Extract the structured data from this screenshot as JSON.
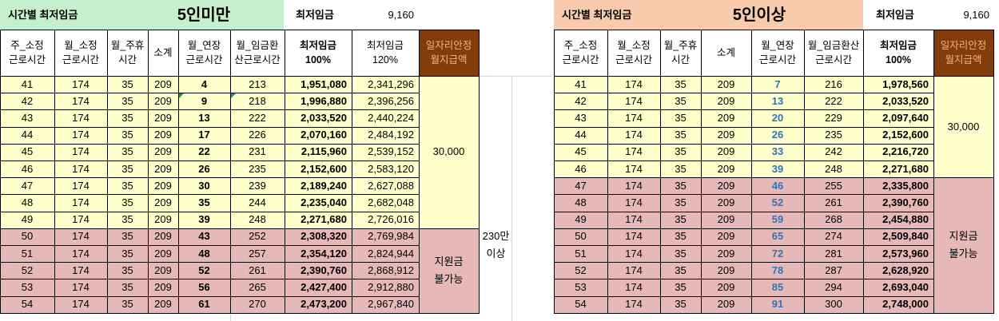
{
  "left": {
    "title": "시간별 최저임금",
    "big_title": "5인미만",
    "min_wage_label": "최저임금",
    "min_wage_value": "9,160",
    "headers": [
      "주_소정\n근로시간",
      "월_소정\n근로시간",
      "월_주휴\n시간",
      "소계",
      "월_연장\n근로시간",
      "월_임금환\n산근로시간",
      "최저임금\n100%",
      "최저임금\n120%",
      "일자리안정\n월지급액"
    ],
    "rows": [
      [
        "41",
        "174",
        "35",
        "209",
        "4",
        "213",
        "1,951,080",
        "2,341,296"
      ],
      [
        "42",
        "174",
        "35",
        "209",
        "9",
        "218",
        "1,996,880",
        "2,396,256"
      ],
      [
        "43",
        "174",
        "35",
        "209",
        "13",
        "222",
        "2,033,520",
        "2,440,224"
      ],
      [
        "44",
        "174",
        "35",
        "209",
        "17",
        "226",
        "2,070,160",
        "2,484,192"
      ],
      [
        "45",
        "174",
        "35",
        "209",
        "22",
        "231",
        "2,115,960",
        "2,539,152"
      ],
      [
        "46",
        "174",
        "35",
        "209",
        "26",
        "235",
        "2,152,600",
        "2,583,120"
      ],
      [
        "47",
        "174",
        "35",
        "209",
        "30",
        "239",
        "2,189,240",
        "2,627,088"
      ],
      [
        "48",
        "174",
        "35",
        "209",
        "35",
        "244",
        "2,235,040",
        "2,682,048"
      ],
      [
        "49",
        "174",
        "35",
        "209",
        "39",
        "248",
        "2,271,680",
        "2,726,016"
      ],
      [
        "50",
        "174",
        "35",
        "209",
        "43",
        "252",
        "2,308,320",
        "2,769,984"
      ],
      [
        "51",
        "174",
        "35",
        "209",
        "48",
        "257",
        "2,354,120",
        "2,824,944"
      ],
      [
        "52",
        "174",
        "35",
        "209",
        "52",
        "261",
        "2,390,760",
        "2,868,912"
      ],
      [
        "53",
        "174",
        "35",
        "209",
        "56",
        "265",
        "2,427,400",
        "2,912,880"
      ],
      [
        "54",
        "174",
        "35",
        "209",
        "61",
        "270",
        "2,473,200",
        "2,967,840"
      ]
    ],
    "support_amount": "30,000",
    "no_support": "지원금\n불가능",
    "note": "230만\n이상"
  },
  "right": {
    "title": "시간별 최저임금",
    "big_title": "5인이상",
    "min_wage_label": "최저임금",
    "min_wage_value": "9,160",
    "headers": [
      "주_소정\n근로시간",
      "월_소정\n근로시간",
      "월_주휴\n시간",
      "소계",
      "월_연장\n근로시간",
      "월_임금환산\n근로시간",
      "최저임금\n100%",
      "일자리안정\n월지급액"
    ],
    "rows": [
      [
        "41",
        "174",
        "35",
        "209",
        "7",
        "216",
        "1,978,560"
      ],
      [
        "42",
        "174",
        "35",
        "209",
        "13",
        "222",
        "2,033,520"
      ],
      [
        "43",
        "174",
        "35",
        "209",
        "20",
        "229",
        "2,097,640"
      ],
      [
        "44",
        "174",
        "35",
        "209",
        "26",
        "235",
        "2,152,600"
      ],
      [
        "45",
        "174",
        "35",
        "209",
        "33",
        "242",
        "2,216,720"
      ],
      [
        "46",
        "174",
        "35",
        "209",
        "39",
        "248",
        "2,271,680"
      ],
      [
        "47",
        "174",
        "35",
        "209",
        "46",
        "255",
        "2,335,800"
      ],
      [
        "48",
        "174",
        "35",
        "209",
        "52",
        "261",
        "2,390,760"
      ],
      [
        "49",
        "174",
        "35",
        "209",
        "59",
        "268",
        "2,454,880"
      ],
      [
        "50",
        "174",
        "35",
        "209",
        "65",
        "274",
        "2,509,840"
      ],
      [
        "51",
        "174",
        "35",
        "209",
        "72",
        "281",
        "2,573,960"
      ],
      [
        "52",
        "174",
        "35",
        "209",
        "78",
        "287",
        "2,628,920"
      ],
      [
        "53",
        "174",
        "35",
        "209",
        "85",
        "294",
        "2,693,040"
      ],
      [
        "54",
        "174",
        "35",
        "209",
        "91",
        "300",
        "2,748,000"
      ]
    ],
    "support_amount": "30,000",
    "no_support": "지원금\n불가능"
  },
  "colors": {
    "green_title": "#c6efce",
    "orange_title": "#f8cbad",
    "brown_header": "#843c0c",
    "yellow": "#ffffcc",
    "pink": "#e6b9b8"
  }
}
